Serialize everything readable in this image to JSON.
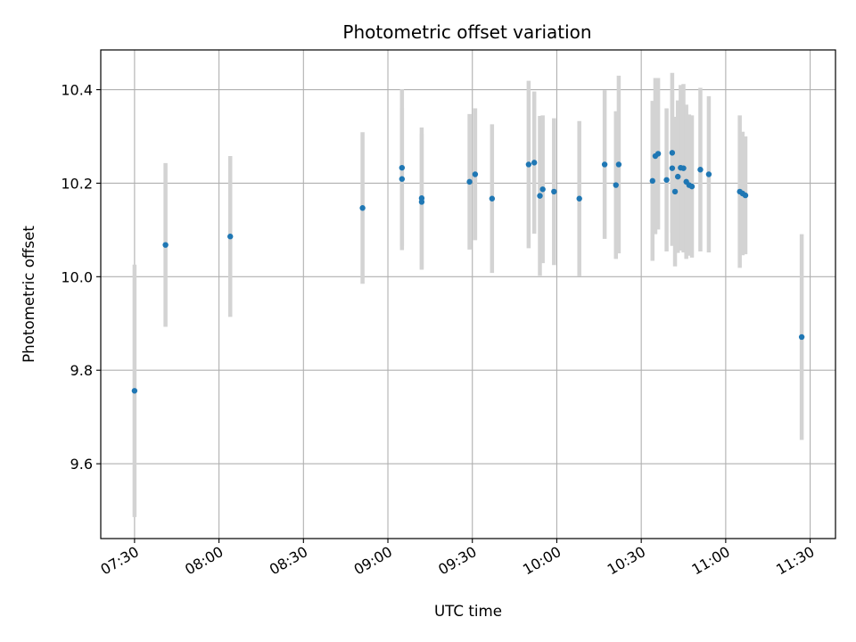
{
  "chart_data": {
    "type": "scatter",
    "title": "Photometric offset variation",
    "xlabel": "UTC time",
    "ylabel": "Photometric offset",
    "x_ticks": [
      "07:30",
      "08:00",
      "08:30",
      "09:00",
      "09:30",
      "10:00",
      "10:30",
      "11:00",
      "11:30"
    ],
    "y_ticks": [
      "9.6",
      "9.8",
      "10.0",
      "10.2",
      "10.4"
    ],
    "xlim": [
      "07:18",
      "11:39"
    ],
    "ylim": [
      9.44,
      10.485
    ],
    "grid": true,
    "point_color": "#1f77b4",
    "errorbar_color": "#d3d3d3",
    "series": [
      {
        "points": [
          {
            "x": "07:30",
            "y": 9.756,
            "err": 0.27
          },
          {
            "x": "07:41",
            "y": 10.068,
            "err": 0.175
          },
          {
            "x": "08:04",
            "y": 10.086,
            "err": 0.172
          },
          {
            "x": "08:51",
            "y": 10.147,
            "err": 0.162
          },
          {
            "x": "09:05",
            "y": 10.233,
            "err": 0.168
          },
          {
            "x": "09:05",
            "y": 10.209,
            "err": 0.152
          },
          {
            "x": "09:12",
            "y": 10.168,
            "err": 0.151
          },
          {
            "x": "09:12",
            "y": 10.16,
            "err": 0.145
          },
          {
            "x": "09:29",
            "y": 10.203,
            "err": 0.145
          },
          {
            "x": "09:31",
            "y": 10.219,
            "err": 0.141
          },
          {
            "x": "09:37",
            "y": 10.167,
            "err": 0.159
          },
          {
            "x": "09:50",
            "y": 10.24,
            "err": 0.179
          },
          {
            "x": "09:52",
            "y": 10.244,
            "err": 0.152
          },
          {
            "x": "09:54",
            "y": 10.173,
            "err": 0.171
          },
          {
            "x": "09:55",
            "y": 10.187,
            "err": 0.158
          },
          {
            "x": "09:59",
            "y": 10.182,
            "err": 0.157
          },
          {
            "x": "10:08",
            "y": 10.167,
            "err": 0.166
          },
          {
            "x": "10:17",
            "y": 10.24,
            "err": 0.159
          },
          {
            "x": "10:21",
            "y": 10.196,
            "err": 0.158
          },
          {
            "x": "10:22",
            "y": 10.24,
            "err": 0.19
          },
          {
            "x": "10:34",
            "y": 10.205,
            "err": 0.171
          },
          {
            "x": "10:35",
            "y": 10.258,
            "err": 0.167
          },
          {
            "x": "10:36",
            "y": 10.263,
            "err": 0.162
          },
          {
            "x": "10:39",
            "y": 10.207,
            "err": 0.153
          },
          {
            "x": "10:41",
            "y": 10.265,
            "err": 0.171
          },
          {
            "x": "10:41",
            "y": 10.232,
            "err": 0.166
          },
          {
            "x": "10:42",
            "y": 10.182,
            "err": 0.16
          },
          {
            "x": "10:43",
            "y": 10.214,
            "err": 0.163
          },
          {
            "x": "10:44",
            "y": 10.233,
            "err": 0.177
          },
          {
            "x": "10:45",
            "y": 10.232,
            "err": 0.18
          },
          {
            "x": "10:46",
            "y": 10.203,
            "err": 0.165
          },
          {
            "x": "10:47",
            "y": 10.196,
            "err": 0.151
          },
          {
            "x": "10:48",
            "y": 10.193,
            "err": 0.152
          },
          {
            "x": "10:51",
            "y": 10.229,
            "err": 0.175
          },
          {
            "x": "10:54",
            "y": 10.219,
            "err": 0.167
          },
          {
            "x": "11:05",
            "y": 10.182,
            "err": 0.163
          },
          {
            "x": "11:06",
            "y": 10.178,
            "err": 0.132
          },
          {
            "x": "11:07",
            "y": 10.174,
            "err": 0.126
          },
          {
            "x": "11:27",
            "y": 9.871,
            "err": 0.22
          }
        ]
      }
    ]
  }
}
